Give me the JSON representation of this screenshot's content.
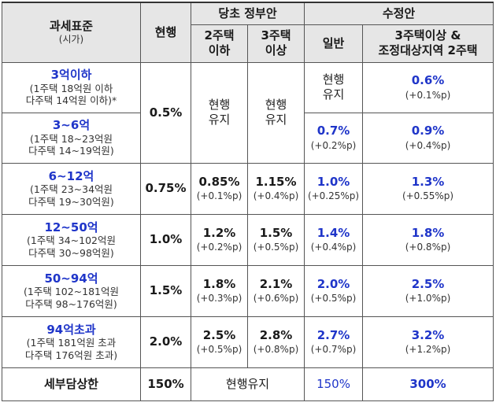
{
  "header": {
    "col_base": "과세표준",
    "col_base_sub": "(시가)",
    "col_current": "현행",
    "group_original": "당초 정부안",
    "col_orig_2": "2주택\n이하",
    "col_orig_3": "3주택\n이상",
    "group_revised": "수정안",
    "col_rev_general": "일반",
    "col_rev_multi": "3주택이상 &\n조정대상지역 2주택"
  },
  "rows": [
    {
      "title": "3억이하",
      "line1": "(1주택 18억원 이하",
      "line2": "다주택 14억원 이하)*",
      "current": "0.5%",
      "orig": "현행\n유지",
      "rev_general": "현행\n유지",
      "rev_multi": "0.6%",
      "rev_multi_delta": "(+0.1%p)"
    },
    {
      "title": "3~6억",
      "line1": "(1주택 18~23억원",
      "line2": "다주택 14~19억원)",
      "rev_general": "0.7%",
      "rev_general_delta": "(+0.2%p)",
      "rev_multi": "0.9%",
      "rev_multi_delta": "(+0.4%p)"
    },
    {
      "title": "6~12억",
      "line1": "(1주택 23~34억원",
      "line2": "다주택 19~30억원)",
      "current": "0.75%",
      "orig_2": "0.85%",
      "orig_2_delta": "(+0.1%p)",
      "orig_3": "1.15%",
      "orig_3_delta": "(+0.4%p)",
      "rev_general": "1.0%",
      "rev_general_delta": "(+0.25%p)",
      "rev_multi": "1.3%",
      "rev_multi_delta": "(+0.55%p)"
    },
    {
      "title": "12~50억",
      "line1": "(1주택 34~102억원",
      "line2": "다주택 30~98억원)",
      "current": "1.0%",
      "orig_2": "1.2%",
      "orig_2_delta": "(+0.2%p)",
      "orig_3": "1.5%",
      "orig_3_delta": "(+0.5%p)",
      "rev_general": "1.4%",
      "rev_general_delta": "(+0.4%p)",
      "rev_multi": "1.8%",
      "rev_multi_delta": "(+0.8%p)"
    },
    {
      "title": "50~94억",
      "line1": "(1주택 102~181억원",
      "line2": "다주택 98~176억원)",
      "current": "1.5%",
      "orig_2": "1.8%",
      "orig_2_delta": "(+0.3%p)",
      "orig_3": "2.1%",
      "orig_3_delta": "(+0.6%p)",
      "rev_general": "2.0%",
      "rev_general_delta": "(+0.5%p)",
      "rev_multi": "2.5%",
      "rev_multi_delta": "(+1.0%p)"
    },
    {
      "title": "94억초과",
      "line1": "(1주택 181억원 초과",
      "line2": "다주택 176억원 초과)",
      "current": "2.0%",
      "orig_2": "2.5%",
      "orig_2_delta": "(+0.5%p)",
      "orig_3": "2.8%",
      "orig_3_delta": "(+0.8%p)",
      "rev_general": "2.7%",
      "rev_general_delta": "(+0.7%p)",
      "rev_multi": "3.2%",
      "rev_multi_delta": "(+1.2%p)"
    }
  ],
  "summary": {
    "title": "세부담상한",
    "current": "150%",
    "orig": "현행유지",
    "rev_general": "150%",
    "rev_multi": "300%"
  },
  "colors": {
    "accent_blue": "#1f35c9",
    "header_gray": "#e6e6e6"
  }
}
